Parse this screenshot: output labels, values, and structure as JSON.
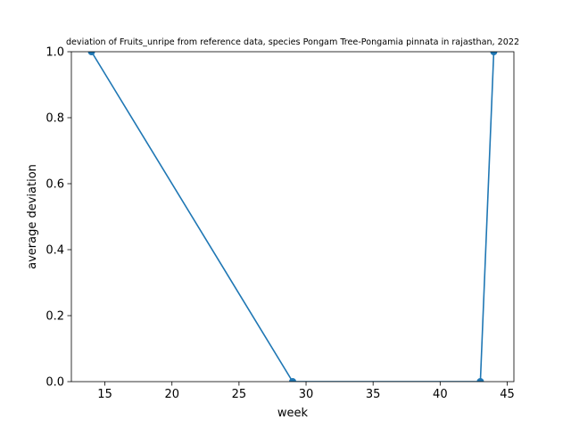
{
  "chart_data": {
    "type": "line",
    "title": "deviation of Fruits_unripe from reference data, species Pongam Tree-Pongamia pinnata in rajasthan, 2022",
    "xlabel": "week",
    "ylabel": "average deviation",
    "xlim": [
      12.5,
      45.5
    ],
    "ylim": [
      0.0,
      1.0
    ],
    "xticks": [
      15,
      20,
      25,
      30,
      35,
      40,
      45
    ],
    "yticks": [
      0.0,
      0.2,
      0.4,
      0.6,
      0.8,
      1.0
    ],
    "xtick_labels": [
      "15",
      "20",
      "25",
      "30",
      "35",
      "40",
      "45"
    ],
    "ytick_labels": [
      "0.0",
      "0.2",
      "0.4",
      "0.6",
      "0.8",
      "1.0"
    ],
    "grid": false,
    "series": [
      {
        "color": "#1f77b4",
        "x": [
          14,
          29,
          43,
          44
        ],
        "y": [
          1.0,
          0.0,
          0.0,
          1.0
        ]
      }
    ]
  }
}
